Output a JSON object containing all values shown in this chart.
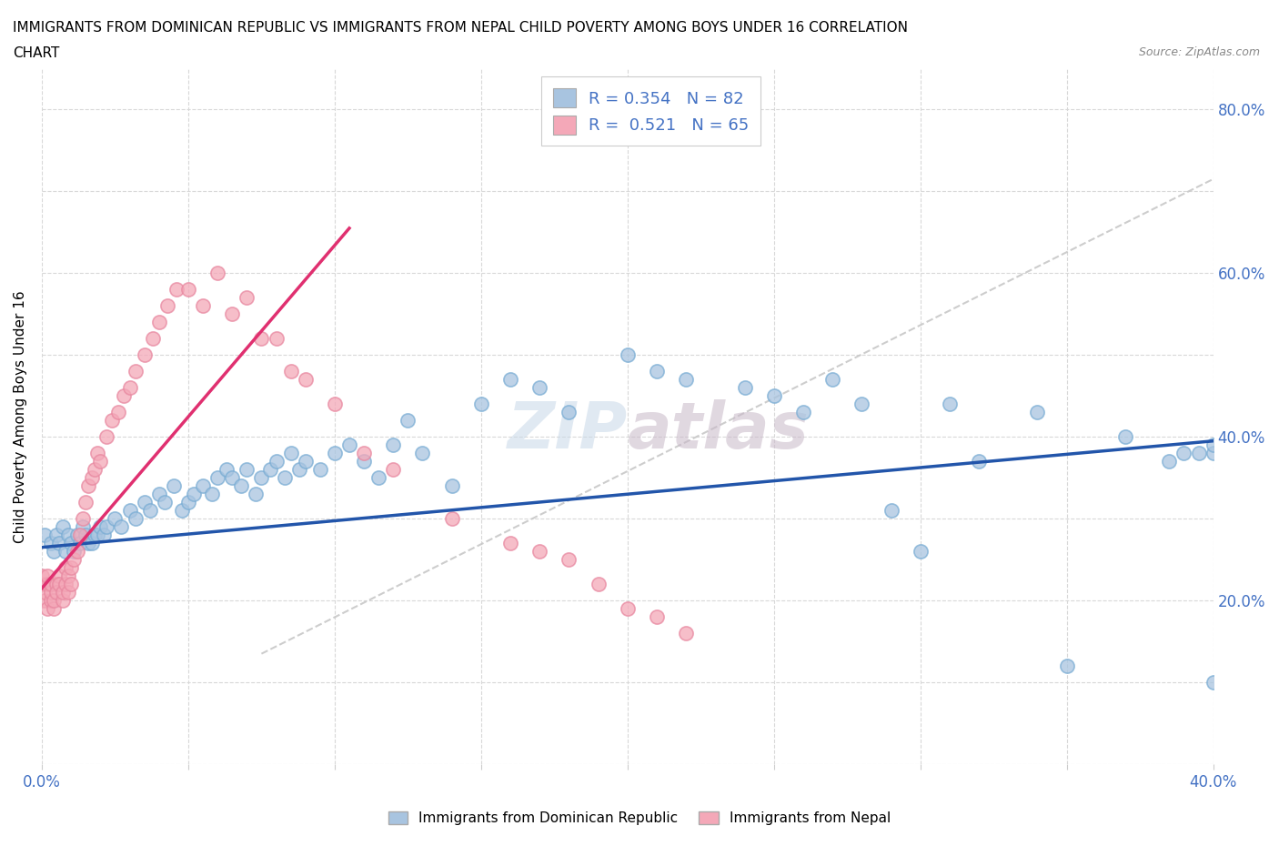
{
  "title_line1": "IMMIGRANTS FROM DOMINICAN REPUBLIC VS IMMIGRANTS FROM NEPAL CHILD POVERTY AMONG BOYS UNDER 16 CORRELATION",
  "title_line2": "CHART",
  "source": "Source: ZipAtlas.com",
  "ylabel": "Child Poverty Among Boys Under 16",
  "xlim": [
    0.0,
    0.4
  ],
  "ylim": [
    0.0,
    0.85
  ],
  "blue_color": "#a8c4e0",
  "blue_edge_color": "#7aadd4",
  "pink_color": "#f4a8b8",
  "pink_edge_color": "#e888a0",
  "blue_line_color": "#2255aa",
  "pink_line_color": "#e03070",
  "gray_dash_color": "#c8c8c8",
  "R_blue": 0.354,
  "N_blue": 82,
  "R_pink": 0.521,
  "N_pink": 65,
  "watermark": "ZIPatlas",
  "legend_label_blue": "Immigrants from Dominican Republic",
  "legend_label_pink": "Immigrants from Nepal",
  "blue_trendline": [
    0.0,
    0.4,
    0.265,
    0.395
  ],
  "pink_trendline": [
    0.0,
    0.105,
    0.215,
    0.655
  ],
  "gray_dashed_line": [
    0.075,
    0.4,
    0.135,
    0.715
  ],
  "blue_x": [
    0.001,
    0.003,
    0.004,
    0.005,
    0.006,
    0.007,
    0.008,
    0.009,
    0.01,
    0.011,
    0.012,
    0.013,
    0.014,
    0.015,
    0.016,
    0.017,
    0.018,
    0.019,
    0.02,
    0.021,
    0.022,
    0.025,
    0.027,
    0.03,
    0.032,
    0.035,
    0.037,
    0.04,
    0.042,
    0.045,
    0.048,
    0.05,
    0.052,
    0.055,
    0.058,
    0.06,
    0.063,
    0.065,
    0.068,
    0.07,
    0.073,
    0.075,
    0.078,
    0.08,
    0.083,
    0.085,
    0.088,
    0.09,
    0.095,
    0.1,
    0.105,
    0.11,
    0.115,
    0.12,
    0.125,
    0.13,
    0.14,
    0.15,
    0.16,
    0.17,
    0.18,
    0.2,
    0.21,
    0.22,
    0.24,
    0.25,
    0.26,
    0.27,
    0.28,
    0.29,
    0.3,
    0.31,
    0.32,
    0.34,
    0.35,
    0.37,
    0.385,
    0.39,
    0.395,
    0.4,
    0.4,
    0.4
  ],
  "blue_y": [
    0.28,
    0.27,
    0.26,
    0.28,
    0.27,
    0.29,
    0.26,
    0.28,
    0.27,
    0.26,
    0.28,
    0.27,
    0.29,
    0.28,
    0.27,
    0.27,
    0.28,
    0.28,
    0.29,
    0.28,
    0.29,
    0.3,
    0.29,
    0.31,
    0.3,
    0.32,
    0.31,
    0.33,
    0.32,
    0.34,
    0.31,
    0.32,
    0.33,
    0.34,
    0.33,
    0.35,
    0.36,
    0.35,
    0.34,
    0.36,
    0.33,
    0.35,
    0.36,
    0.37,
    0.35,
    0.38,
    0.36,
    0.37,
    0.36,
    0.38,
    0.39,
    0.37,
    0.35,
    0.39,
    0.42,
    0.38,
    0.34,
    0.44,
    0.47,
    0.46,
    0.43,
    0.5,
    0.48,
    0.47,
    0.46,
    0.45,
    0.43,
    0.47,
    0.44,
    0.31,
    0.26,
    0.44,
    0.37,
    0.43,
    0.12,
    0.4,
    0.37,
    0.38,
    0.38,
    0.1,
    0.38,
    0.39
  ],
  "pink_x": [
    0.0,
    0.0,
    0.001,
    0.001,
    0.002,
    0.002,
    0.002,
    0.003,
    0.003,
    0.003,
    0.004,
    0.004,
    0.005,
    0.005,
    0.006,
    0.006,
    0.007,
    0.007,
    0.008,
    0.008,
    0.009,
    0.009,
    0.01,
    0.01,
    0.011,
    0.012,
    0.013,
    0.014,
    0.015,
    0.016,
    0.017,
    0.018,
    0.019,
    0.02,
    0.022,
    0.024,
    0.026,
    0.028,
    0.03,
    0.032,
    0.035,
    0.038,
    0.04,
    0.043,
    0.046,
    0.05,
    0.055,
    0.06,
    0.065,
    0.07,
    0.075,
    0.08,
    0.085,
    0.09,
    0.1,
    0.11,
    0.12,
    0.14,
    0.16,
    0.17,
    0.18,
    0.19,
    0.2,
    0.21,
    0.22
  ],
  "pink_y": [
    0.22,
    0.23,
    0.2,
    0.21,
    0.19,
    0.22,
    0.23,
    0.2,
    0.21,
    0.22,
    0.19,
    0.2,
    0.22,
    0.21,
    0.23,
    0.22,
    0.2,
    0.21,
    0.22,
    0.24,
    0.21,
    0.23,
    0.24,
    0.22,
    0.25,
    0.26,
    0.28,
    0.3,
    0.32,
    0.34,
    0.35,
    0.36,
    0.38,
    0.37,
    0.4,
    0.42,
    0.43,
    0.45,
    0.46,
    0.48,
    0.5,
    0.52,
    0.54,
    0.56,
    0.58,
    0.58,
    0.56,
    0.6,
    0.55,
    0.57,
    0.52,
    0.52,
    0.48,
    0.47,
    0.44,
    0.38,
    0.36,
    0.3,
    0.27,
    0.26,
    0.25,
    0.22,
    0.19,
    0.18,
    0.16
  ]
}
